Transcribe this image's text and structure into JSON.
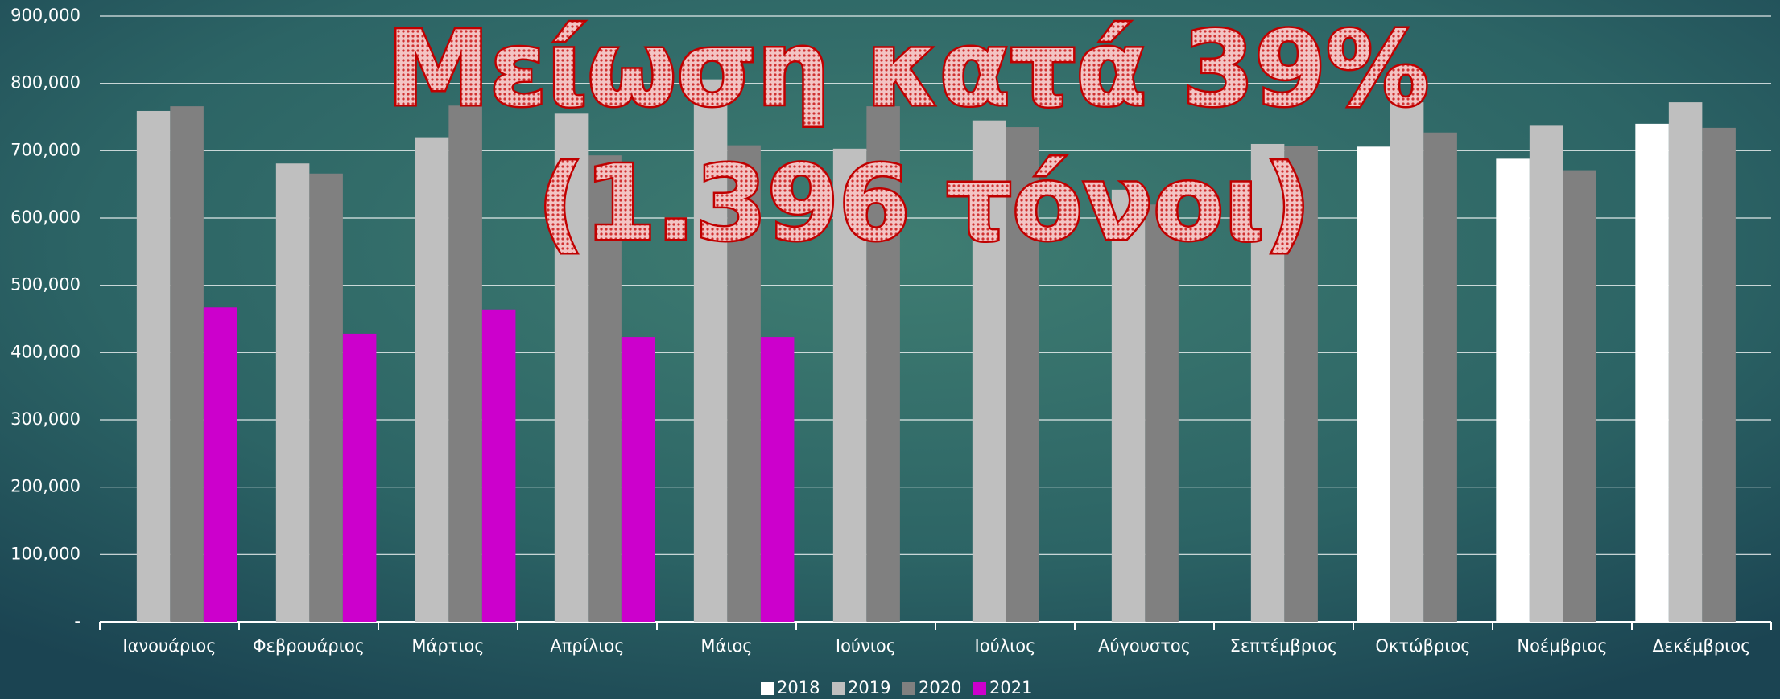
{
  "chart_data": {
    "type": "bar",
    "annotation": [
      "Μείωση κατά 39%",
      "(1.396 τόνοι)"
    ],
    "categories": [
      "Ιανουάριος",
      "Φεβρουάριος",
      "Μάρτιος",
      "Απρίλιος",
      "Μάιος",
      "Ιούνιος",
      "Ιούλιος",
      "Αύγουστος",
      "Σεπτέμβριος",
      "Οκτώβριος",
      "Νοέμβριος",
      "Δεκέμβριος"
    ],
    "series": [
      {
        "name": "2018",
        "color": "#ffffff",
        "values": [
          null,
          null,
          null,
          null,
          null,
          null,
          null,
          null,
          null,
          706000,
          688000,
          740000
        ]
      },
      {
        "name": "2019",
        "color": "#bfbfbf",
        "values": [
          759000,
          681000,
          720000,
          755000,
          806000,
          703000,
          745000,
          642000,
          710000,
          772000,
          737000,
          772000
        ]
      },
      {
        "name": "2020",
        "color": "#808080",
        "values": [
          766000,
          666000,
          767000,
          693000,
          708000,
          766000,
          735000,
          620000,
          707000,
          727000,
          671000,
          734000
        ]
      },
      {
        "name": "2021",
        "color": "#cc00cc",
        "values": [
          467000,
          428000,
          464000,
          423000,
          423000,
          null,
          null,
          null,
          null,
          null,
          null,
          null
        ]
      }
    ],
    "ylim": [
      0,
      900000
    ],
    "yticks": [
      {
        "value": 0,
        "label": "-"
      },
      {
        "value": 100000,
        "label": "100,000"
      },
      {
        "value": 200000,
        "label": "200,000"
      },
      {
        "value": 300000,
        "label": "300,000"
      },
      {
        "value": 400000,
        "label": "400,000"
      },
      {
        "value": 500000,
        "label": "500,000"
      },
      {
        "value": 600000,
        "label": "600,000"
      },
      {
        "value": 700000,
        "label": "700,000"
      },
      {
        "value": 800000,
        "label": "800,000"
      },
      {
        "value": 900000,
        "label": "900,000"
      }
    ],
    "grid": true,
    "legend": "bottom"
  }
}
